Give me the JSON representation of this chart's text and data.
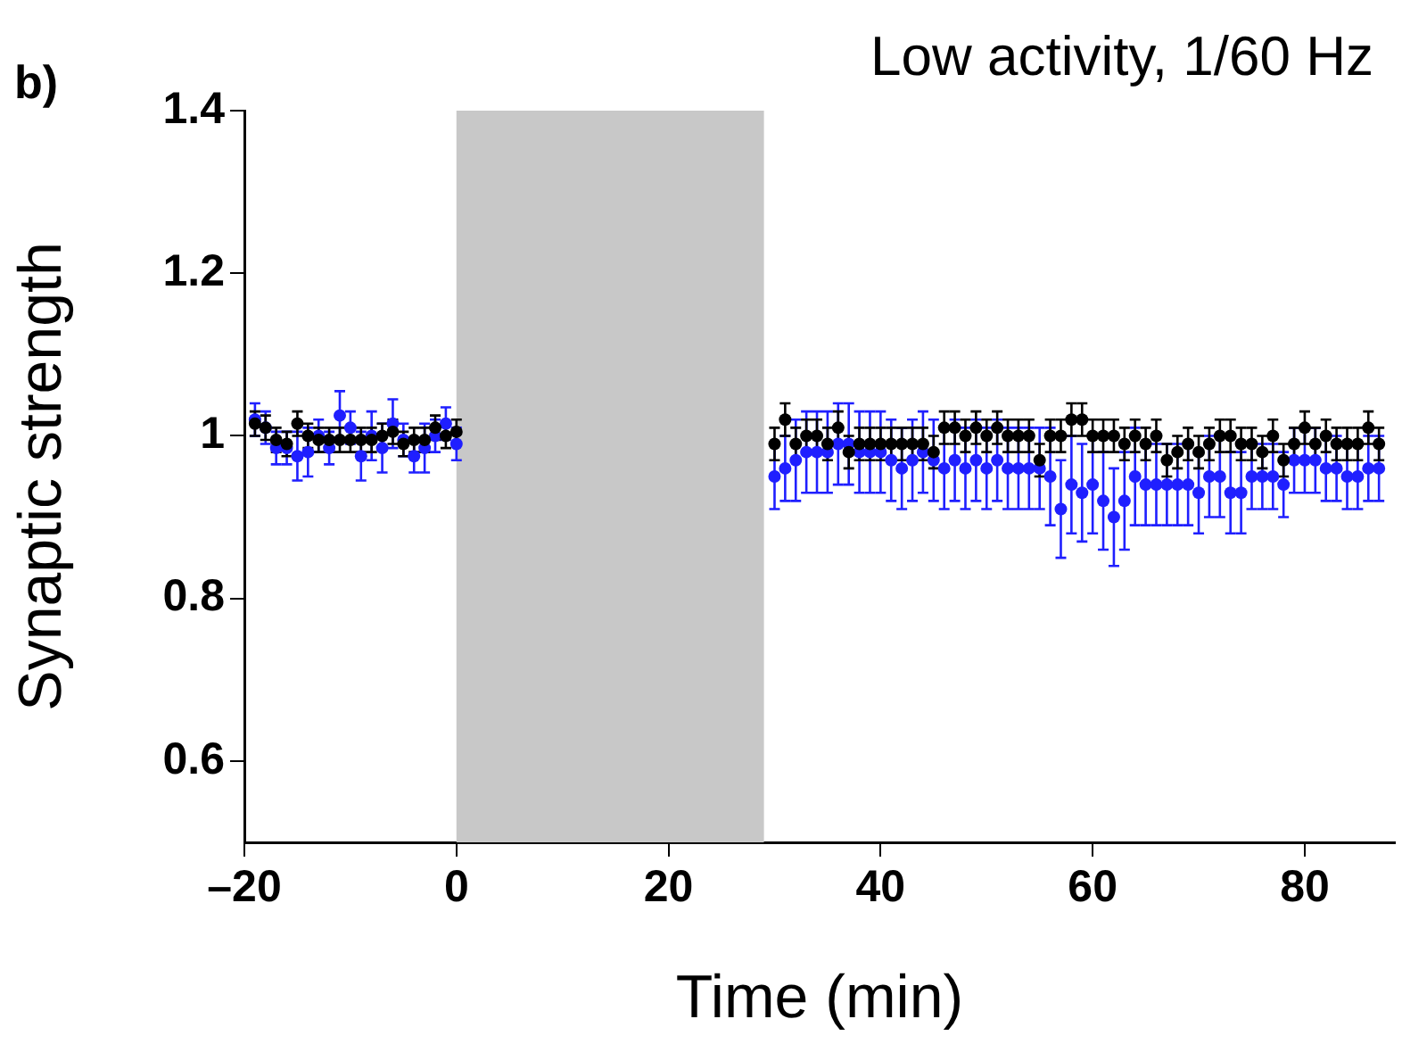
{
  "chart_data": {
    "type": "scatter",
    "title": "Low activity, 1/60 Hz",
    "xlabel": "Time (min)",
    "ylabel": "Synaptic strength",
    "annotations": [
      "b)"
    ],
    "xlim": [
      -20,
      88.5
    ],
    "ylim": [
      0.5,
      1.4
    ],
    "xticks": [
      {
        "value": -20,
        "label": "–20"
      },
      0,
      20,
      40,
      60,
      80
    ],
    "yticks": [
      0.6,
      0.8,
      1,
      1.2,
      1.4
    ],
    "grid": false,
    "legend": false,
    "marker": "circle",
    "bands": [
      {
        "axis": "x",
        "from": 0,
        "to": 29,
        "color": "#c8c8c8"
      }
    ],
    "series": [
      {
        "color": "#1f1fff",
        "x": [
          -19,
          -18,
          -17,
          -16,
          -15,
          -14,
          -13,
          -12,
          -11,
          -10,
          -9,
          -8,
          -7,
          -6,
          -5,
          -4,
          -3,
          -2,
          -1,
          0,
          30,
          31,
          32,
          33,
          34,
          35,
          36,
          37,
          38,
          39,
          40,
          41,
          42,
          43,
          44,
          45,
          46,
          47,
          48,
          49,
          50,
          51,
          52,
          53,
          54,
          55,
          56,
          57,
          58,
          59,
          60,
          61,
          62,
          63,
          64,
          65,
          66,
          67,
          68,
          69,
          70,
          71,
          72,
          73,
          74,
          75,
          76,
          77,
          78,
          79,
          80,
          81,
          82,
          83,
          84,
          85,
          86,
          87
        ],
        "values": [
          1.02,
          1.01,
          0.985,
          0.985,
          0.975,
          0.98,
          1.0,
          0.985,
          1.025,
          1.01,
          0.975,
          1.0,
          0.985,
          1.015,
          0.995,
          0.975,
          0.985,
          1.0,
          1.015,
          0.99,
          0.95,
          0.96,
          0.97,
          0.98,
          0.98,
          0.98,
          0.99,
          0.99,
          0.98,
          0.98,
          0.98,
          0.97,
          0.96,
          0.97,
          0.98,
          0.97,
          0.96,
          0.97,
          0.96,
          0.97,
          0.96,
          0.97,
          0.96,
          0.96,
          0.96,
          0.96,
          0.95,
          0.91,
          0.94,
          0.93,
          0.94,
          0.92,
          0.9,
          0.92,
          0.95,
          0.94,
          0.94,
          0.94,
          0.94,
          0.94,
          0.93,
          0.95,
          0.95,
          0.93,
          0.93,
          0.95,
          0.95,
          0.95,
          0.94,
          0.97,
          0.97,
          0.97,
          0.96,
          0.96,
          0.95,
          0.95,
          0.96,
          0.96
        ],
        "errors": [
          0.02,
          0.02,
          0.02,
          0.02,
          0.03,
          0.03,
          0.02,
          0.02,
          0.03,
          0.02,
          0.03,
          0.03,
          0.03,
          0.03,
          0.02,
          0.02,
          0.03,
          0.02,
          0.02,
          0.02,
          0.04,
          0.04,
          0.05,
          0.05,
          0.05,
          0.05,
          0.05,
          0.05,
          0.05,
          0.05,
          0.05,
          0.05,
          0.05,
          0.05,
          0.05,
          0.05,
          0.05,
          0.05,
          0.05,
          0.05,
          0.05,
          0.05,
          0.05,
          0.05,
          0.05,
          0.05,
          0.06,
          0.06,
          0.06,
          0.06,
          0.06,
          0.06,
          0.06,
          0.06,
          0.06,
          0.05,
          0.05,
          0.05,
          0.05,
          0.05,
          0.05,
          0.05,
          0.05,
          0.05,
          0.05,
          0.04,
          0.04,
          0.04,
          0.04,
          0.04,
          0.04,
          0.04,
          0.04,
          0.04,
          0.04,
          0.04,
          0.04,
          0.04
        ]
      },
      {
        "color": "#000000",
        "x": [
          -19,
          -18,
          -17,
          -16,
          -15,
          -14,
          -13,
          -12,
          -11,
          -10,
          -9,
          -8,
          -7,
          -6,
          -5,
          -4,
          -3,
          -2,
          -1,
          0,
          30,
          31,
          32,
          33,
          34,
          35,
          36,
          37,
          38,
          39,
          40,
          41,
          42,
          43,
          44,
          45,
          46,
          47,
          48,
          49,
          50,
          51,
          52,
          53,
          54,
          55,
          56,
          57,
          58,
          59,
          60,
          61,
          62,
          63,
          64,
          65,
          66,
          67,
          68,
          69,
          70,
          71,
          72,
          73,
          74,
          75,
          76,
          77,
          78,
          79,
          80,
          81,
          82,
          83,
          84,
          85,
          86,
          87
        ],
        "values": [
          1.015,
          1.01,
          0.995,
          0.99,
          1.015,
          1.0,
          0.995,
          0.995,
          0.995,
          0.995,
          0.995,
          0.995,
          1.0,
          1.005,
          0.99,
          0.995,
          0.995,
          1.01,
          1.0,
          1.005,
          0.99,
          1.02,
          0.99,
          1.0,
          1.0,
          0.99,
          1.01,
          0.98,
          0.99,
          0.99,
          0.99,
          0.99,
          0.99,
          0.99,
          0.99,
          0.98,
          1.01,
          1.01,
          1.0,
          1.01,
          1.0,
          1.01,
          1.0,
          1.0,
          1.0,
          0.97,
          1.0,
          1.0,
          1.02,
          1.02,
          1.0,
          1.0,
          1.0,
          0.99,
          1.0,
          0.99,
          1.0,
          0.97,
          0.98,
          0.99,
          0.98,
          0.99,
          1.0,
          1.0,
          0.99,
          0.99,
          0.98,
          1.0,
          0.97,
          0.99,
          1.01,
          0.99,
          1.0,
          0.99,
          0.99,
          0.99,
          1.01,
          0.99
        ],
        "errors": [
          0.015,
          0.015,
          0.015,
          0.015,
          0.015,
          0.015,
          0.015,
          0.015,
          0.015,
          0.015,
          0.015,
          0.015,
          0.015,
          0.015,
          0.015,
          0.015,
          0.015,
          0.015,
          0.015,
          0.015,
          0.02,
          0.02,
          0.02,
          0.02,
          0.02,
          0.02,
          0.02,
          0.02,
          0.02,
          0.02,
          0.02,
          0.02,
          0.02,
          0.02,
          0.02,
          0.02,
          0.02,
          0.02,
          0.02,
          0.02,
          0.02,
          0.02,
          0.02,
          0.02,
          0.02,
          0.02,
          0.02,
          0.02,
          0.02,
          0.02,
          0.02,
          0.02,
          0.02,
          0.02,
          0.02,
          0.02,
          0.02,
          0.02,
          0.02,
          0.02,
          0.02,
          0.02,
          0.02,
          0.02,
          0.02,
          0.02,
          0.02,
          0.02,
          0.02,
          0.02,
          0.02,
          0.02,
          0.02,
          0.02,
          0.02,
          0.02,
          0.02,
          0.02
        ]
      }
    ]
  }
}
